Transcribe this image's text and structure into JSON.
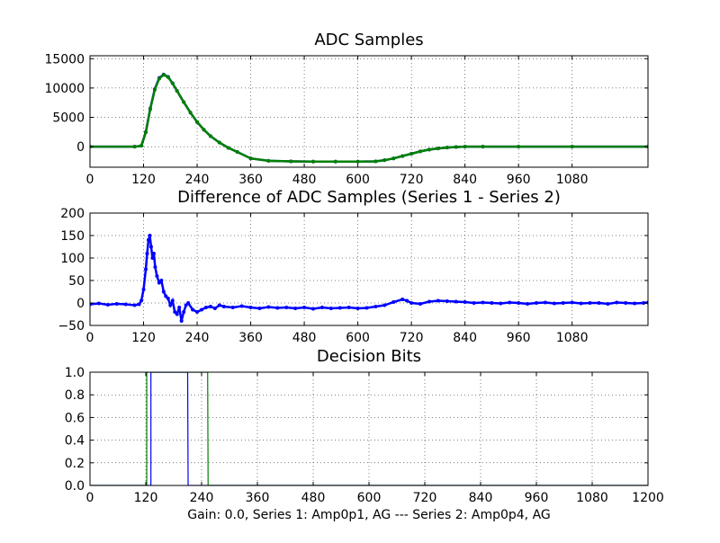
{
  "figure": {
    "footer": "Gain: 0.0, Series 1: Amp0p1, AG --- Series 2: Amp0p4, AG"
  },
  "chart_data": [
    {
      "type": "line",
      "title": "ADC Samples",
      "xlabel": "",
      "ylabel": "",
      "xlim": [
        0,
        1250
      ],
      "ylim": [
        -3500,
        15500
      ],
      "grid": true,
      "xticks": [
        0,
        120,
        240,
        360,
        480,
        600,
        720,
        840,
        960,
        1080
      ],
      "xtick_labels": [
        "0",
        "120",
        "240",
        "360",
        "480",
        "600",
        "720",
        "840",
        "960",
        "1080"
      ],
      "yticks": [
        0,
        5000,
        10000,
        15000
      ],
      "ytick_labels": [
        "0",
        "5000",
        "10000",
        "15000"
      ],
      "series": [
        {
          "color": "#0000ff",
          "marker": "dot",
          "x": [
            0,
            100,
            115,
            125,
            135,
            145,
            155,
            165,
            175,
            185,
            195,
            210,
            225,
            240,
            255,
            270,
            290,
            310,
            330,
            360,
            400,
            450,
            500,
            550,
            600,
            640,
            660,
            680,
            700,
            720,
            740,
            760,
            780,
            800,
            820,
            840,
            880,
            960,
            1080,
            1250
          ],
          "y": [
            0,
            0,
            150,
            2500,
            6500,
            9800,
            11700,
            12300,
            11900,
            10800,
            9500,
            7600,
            5800,
            4200,
            2900,
            1800,
            700,
            -200,
            -900,
            -2000,
            -2400,
            -2500,
            -2550,
            -2550,
            -2550,
            -2500,
            -2300,
            -2000,
            -1600,
            -1200,
            -800,
            -500,
            -300,
            -150,
            -50,
            0,
            0,
            0,
            0,
            0
          ]
        },
        {
          "color": "#008000",
          "marker": "dot",
          "x": [
            0,
            100,
            115,
            125,
            135,
            145,
            155,
            165,
            175,
            185,
            195,
            210,
            225,
            240,
            255,
            270,
            290,
            310,
            330,
            360,
            400,
            450,
            500,
            550,
            600,
            640,
            660,
            680,
            700,
            720,
            740,
            760,
            780,
            800,
            820,
            840,
            880,
            960,
            1080,
            1250
          ],
          "y": [
            0,
            0,
            150,
            2450,
            6400,
            9700,
            11600,
            12250,
            11850,
            10800,
            9500,
            7600,
            5800,
            4200,
            2900,
            1800,
            700,
            -200,
            -900,
            -2000,
            -2400,
            -2500,
            -2550,
            -2550,
            -2550,
            -2500,
            -2300,
            -2000,
            -1600,
            -1200,
            -800,
            -500,
            -300,
            -150,
            -50,
            0,
            0,
            0,
            0,
            0
          ]
        }
      ]
    },
    {
      "type": "line",
      "title": "Difference of ADC Samples (Series 1 - Series 2)",
      "xlabel": "",
      "ylabel": "",
      "xlim": [
        0,
        1250
      ],
      "ylim": [
        -50,
        200
      ],
      "grid": true,
      "xticks": [
        0,
        120,
        240,
        360,
        480,
        600,
        720,
        840,
        960,
        1080
      ],
      "xtick_labels": [
        "0",
        "120",
        "240",
        "360",
        "480",
        "600",
        "720",
        "840",
        "960",
        "1080"
      ],
      "yticks": [
        -50,
        0,
        50,
        100,
        150,
        200
      ],
      "ytick_labels": [
        "−50",
        "0",
        "50",
        "100",
        "150",
        "200"
      ],
      "series": [
        {
          "color": "#0000ff",
          "marker": "dot",
          "x": [
            0,
            20,
            40,
            60,
            80,
            100,
            110,
            115,
            120,
            125,
            128,
            131,
            134,
            137,
            140,
            143,
            146,
            150,
            155,
            160,
            165,
            170,
            175,
            180,
            185,
            190,
            195,
            200,
            205,
            210,
            215,
            220,
            230,
            240,
            250,
            260,
            270,
            280,
            290,
            300,
            320,
            340,
            360,
            380,
            400,
            420,
            440,
            460,
            480,
            500,
            520,
            540,
            560,
            580,
            600,
            620,
            640,
            660,
            680,
            700,
            710,
            720,
            740,
            760,
            780,
            800,
            820,
            840,
            860,
            880,
            900,
            920,
            940,
            960,
            980,
            1000,
            1020,
            1040,
            1060,
            1080,
            1100,
            1120,
            1140,
            1160,
            1180,
            1200,
            1220,
            1240,
            1250
          ],
          "y": [
            -3,
            -1,
            -4,
            -2,
            -3,
            -5,
            -3,
            5,
            30,
            75,
            110,
            140,
            150,
            125,
            100,
            110,
            80,
            60,
            45,
            50,
            25,
            15,
            10,
            -5,
            5,
            -20,
            -25,
            -10,
            -40,
            -20,
            -5,
            0,
            -15,
            -20,
            -15,
            -10,
            -8,
            -12,
            -5,
            -8,
            -10,
            -7,
            -10,
            -12,
            -9,
            -11,
            -10,
            -12,
            -10,
            -13,
            -10,
            -12,
            -11,
            -10,
            -12,
            -11,
            -8,
            -5,
            2,
            8,
            5,
            0,
            -2,
            3,
            5,
            4,
            3,
            2,
            0,
            1,
            0,
            -1,
            1,
            0,
            -2,
            0,
            1,
            -1,
            0,
            1,
            -1,
            0,
            0,
            -2,
            1,
            0,
            -1,
            0,
            1
          ]
        }
      ]
    },
    {
      "type": "line",
      "title": "Decision Bits",
      "xlabel": "",
      "ylabel": "",
      "xlim": [
        0,
        1200
      ],
      "ylim": [
        0,
        1
      ],
      "grid": true,
      "xticks": [
        0,
        120,
        240,
        360,
        480,
        600,
        720,
        840,
        960,
        1080,
        1200
      ],
      "xtick_labels": [
        "0",
        "120",
        "240",
        "360",
        "480",
        "600",
        "720",
        "840",
        "960",
        "1080",
        "1200"
      ],
      "yticks": [
        0,
        0.2,
        0.4,
        0.6,
        0.8,
        1.0
      ],
      "ytick_labels": [
        "0.0",
        "0.2",
        "0.4",
        "0.6",
        "0.8",
        "1.0"
      ],
      "series": [
        {
          "color": "#0000ff",
          "marker": "none",
          "x": [
            0,
            130,
            131,
            131,
            210,
            211,
            1200
          ],
          "y": [
            0,
            0,
            0,
            1,
            1,
            0,
            0
          ]
        },
        {
          "color": "#008000",
          "marker": "none",
          "x": [
            0,
            121,
            122,
            122,
            253,
            254,
            1200
          ],
          "y": [
            0,
            0,
            0,
            1,
            1,
            0,
            0
          ]
        }
      ]
    }
  ]
}
